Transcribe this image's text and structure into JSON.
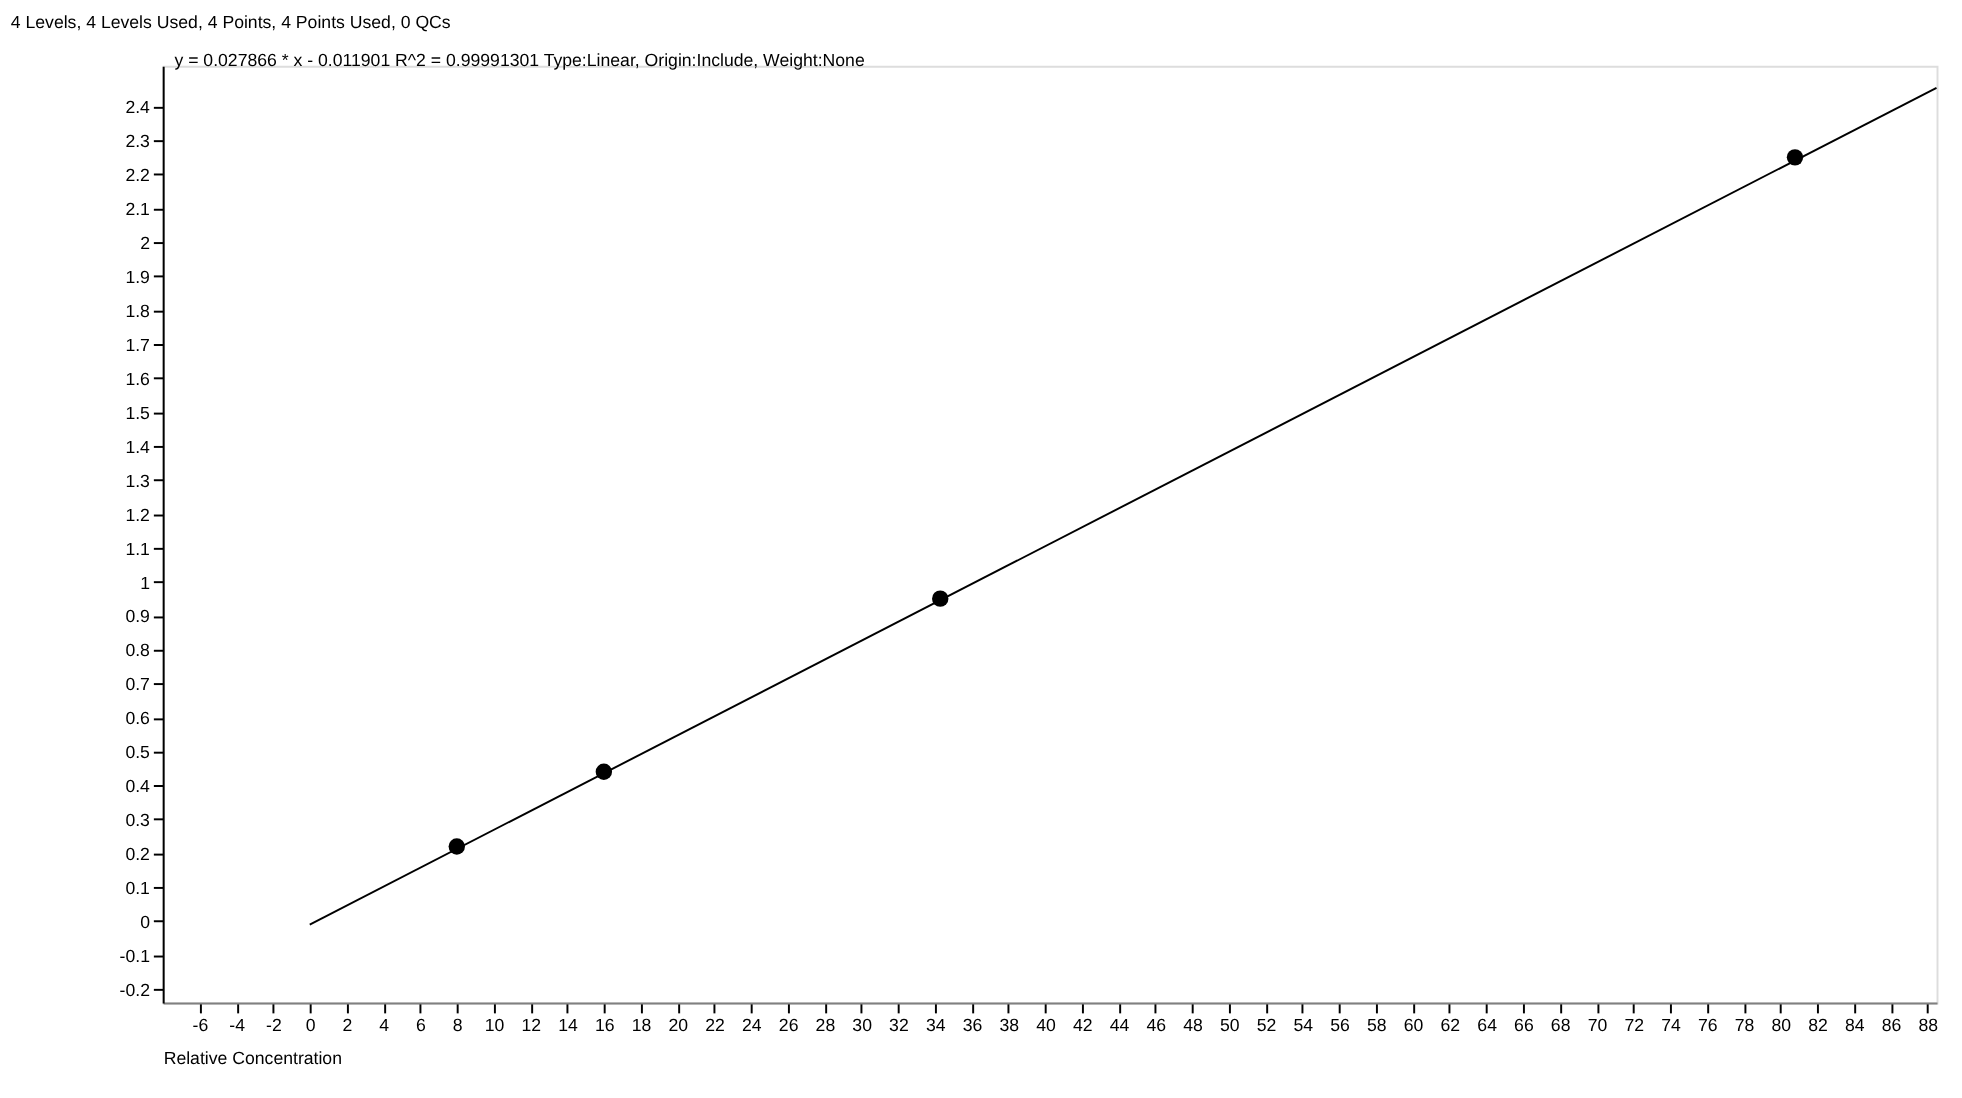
{
  "chart_data": {
    "type": "scatter",
    "title": "4 Levels, 4 Levels Used, 4 Points, 4 Points Used, 0 QCs",
    "xlabel": "Relative Concentration",
    "annotations": [
      "y = 0.027866 * x  - 0.011901    R^2 = 0.99991301    Type:Linear, Origin:Include, Weight:None"
    ],
    "series": [
      {
        "color": "#000000",
        "marker": "circle",
        "x": [
          8,
          16,
          34.3,
          80.8
        ],
        "values": [
          0.22,
          0.44,
          0.95,
          2.25
        ]
      },
      {
        "type": "line",
        "color": "#000000",
        "marker": "none",
        "x": [
          0,
          88.5
        ],
        "values": [
          -0.01,
          2.455
        ]
      }
    ],
    "xlim": [
      -8,
      88.5
    ],
    "ylim": [
      -0.24,
      2.52
    ],
    "xticks": [
      -6,
      -4,
      -2,
      0,
      2,
      4,
      6,
      8,
      10,
      12,
      14,
      16,
      18,
      20,
      22,
      24,
      26,
      28,
      30,
      32,
      34,
      36,
      38,
      40,
      42,
      44,
      46,
      48,
      50,
      52,
      54,
      56,
      58,
      60,
      62,
      64,
      66,
      68,
      70,
      72,
      74,
      76,
      78,
      80,
      82,
      84,
      86,
      88
    ],
    "yticks": [
      -0.2,
      -0.1,
      0,
      0.1,
      0.2,
      0.3,
      0.4,
      0.5,
      0.6,
      0.7,
      0.8,
      0.9,
      1,
      1.1,
      1.2,
      1.3,
      1.4,
      1.5,
      1.6,
      1.7,
      1.8,
      1.9,
      2,
      2.1,
      2.2,
      2.3,
      2.4
    ],
    "grid": false
  }
}
